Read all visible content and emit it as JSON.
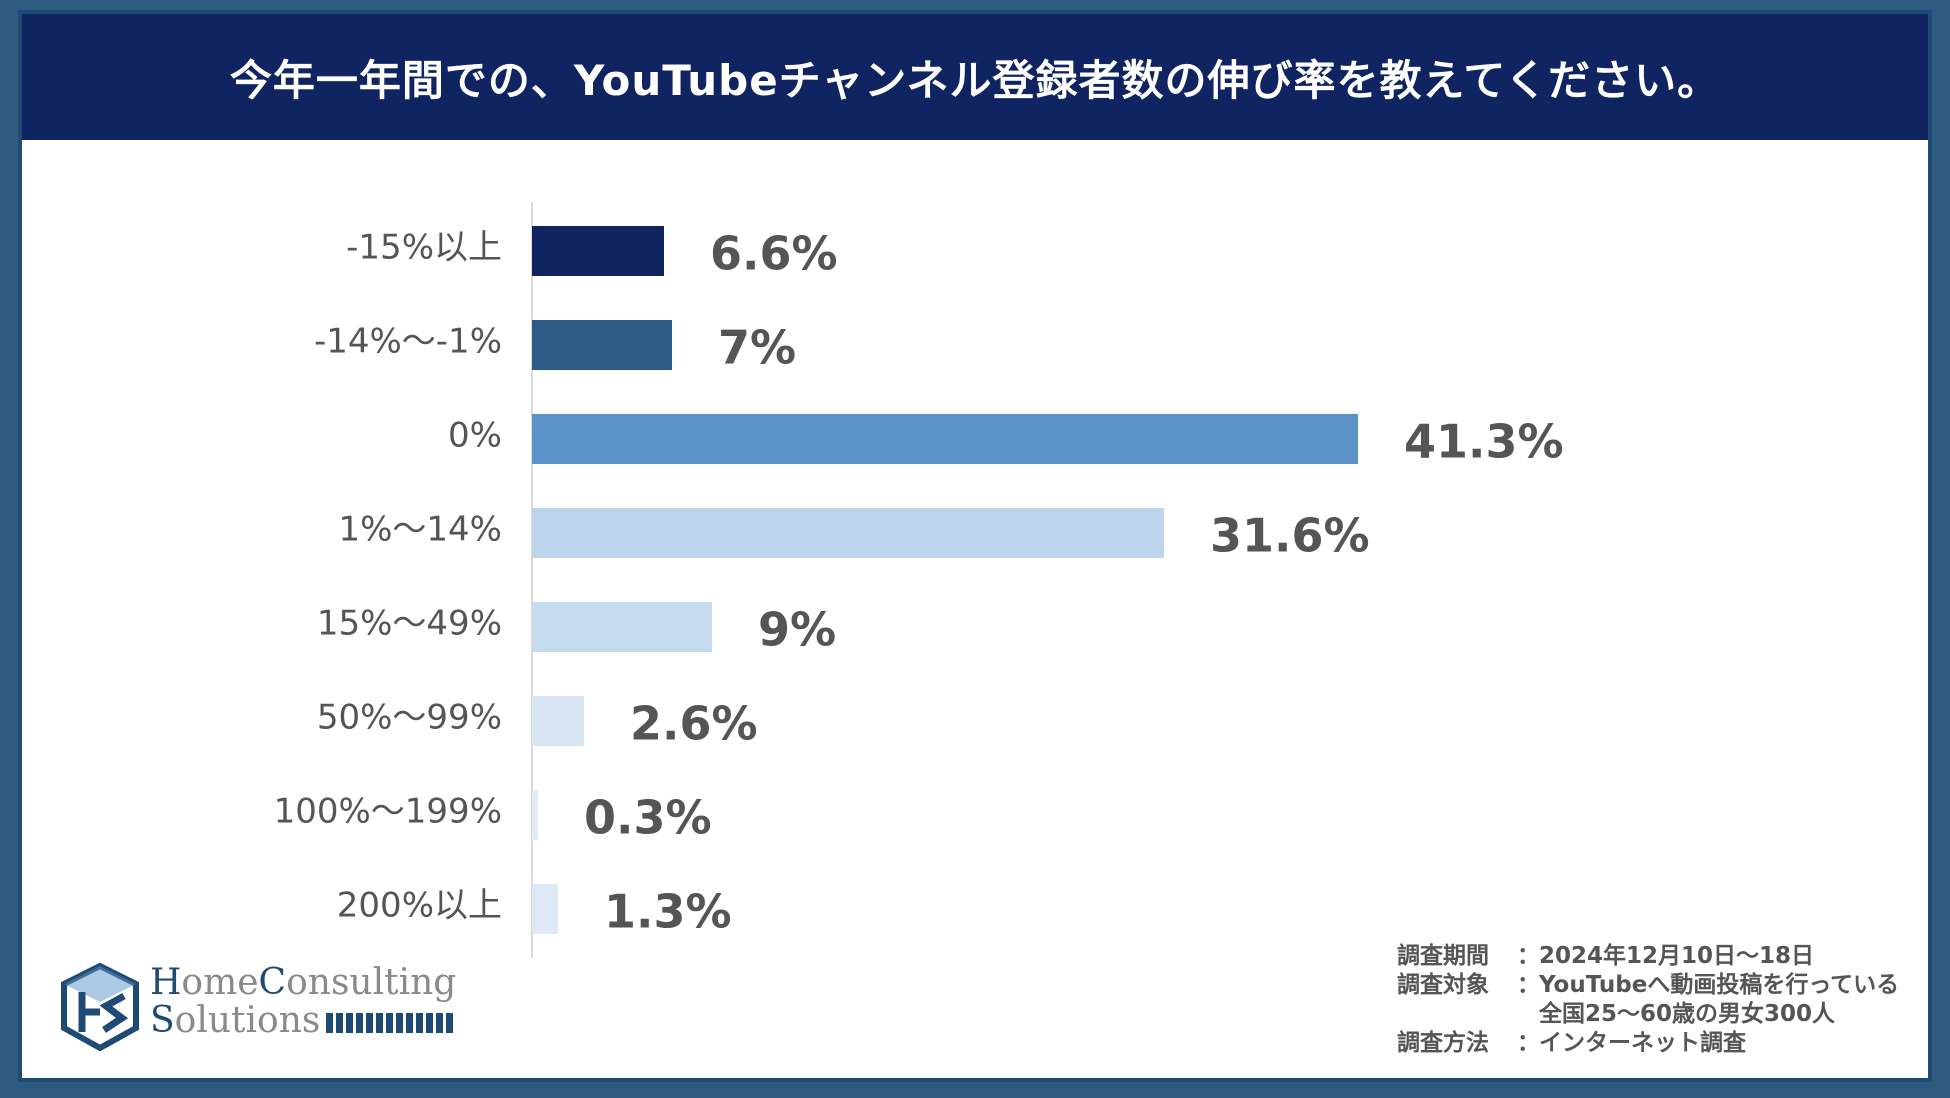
{
  "header": {
    "title": "今年一年間での、YouTubeチャンネル登録者数の伸び率を教えてください。"
  },
  "chart_data": {
    "type": "bar",
    "orientation": "horizontal",
    "categories": [
      "-15%以上",
      "-14%〜-1%",
      "0%",
      "1%〜14%",
      "15%〜49%",
      "50%〜99%",
      "100%〜199%",
      "200%以上"
    ],
    "values": [
      6.6,
      7,
      41.3,
      31.6,
      9,
      2.6,
      0.3,
      1.3
    ],
    "value_labels": [
      "6.6%",
      "7%",
      "41.3%",
      "31.6%",
      "9%",
      "2.6%",
      "0.3%",
      "1.3%"
    ],
    "colors": [
      "#0f2460",
      "#2d5a87",
      "#5b93c9",
      "#bdd6ee",
      "#c6dbf0",
      "#d8e6f4",
      "#e2ecf7",
      "#dde9f5"
    ],
    "title": "今年一年間での、YouTubeチャンネル登録者数の伸び率を教えてください。",
    "xlabel": "",
    "ylabel": "",
    "grid": false,
    "legend": "none"
  },
  "notes": [
    {
      "key": "調査期間",
      "sep": "：",
      "value": "2024年12月10日〜18日"
    },
    {
      "key": "調査対象",
      "sep": "：",
      "value": "YouTubeへ動画投稿を行っている"
    },
    {
      "key": "",
      "sep": "",
      "value": "全国25〜60歳の男女300人"
    },
    {
      "key": "調査方法",
      "sep": "：",
      "value": "インターネット調査"
    }
  ],
  "logo": {
    "line1_a": "H",
    "line1_b": "ome",
    "line1_c": "C",
    "line1_d": "onsulting",
    "line2_a": "S",
    "line2_b": "olutions"
  }
}
